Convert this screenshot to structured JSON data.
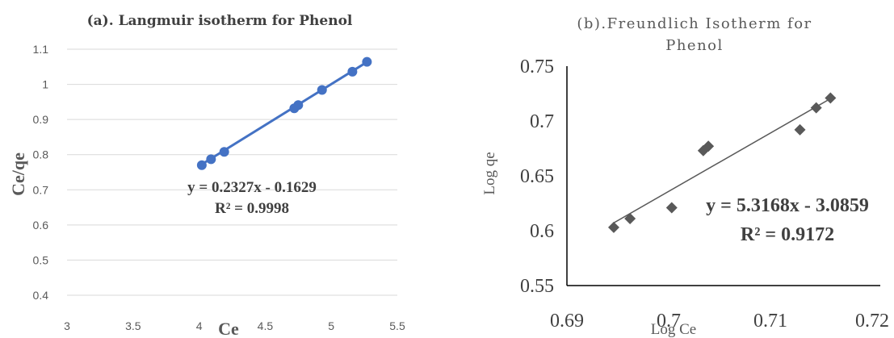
{
  "chart_data": [
    {
      "type": "scatter",
      "title": "(a). Langmuir isotherm for Phenol",
      "xlabel": "Ce",
      "ylabel": "Ce/qe",
      "xlim": [
        3,
        5.5
      ],
      "ylim": [
        0.4,
        1.1
      ],
      "xticks": [
        "3",
        "3.5",
        "4",
        "4.5",
        "5",
        "5.5"
      ],
      "yticks": [
        "0.4",
        "0.5",
        "0.6",
        "0.7",
        "0.8",
        "0.9",
        "1",
        "1.1"
      ],
      "grid": "horizontal",
      "series": [
        {
          "x": [
            4.02,
            4.09,
            4.19,
            4.72,
            4.75,
            4.93,
            5.16,
            5.27
          ],
          "y": [
            0.77,
            0.787,
            0.808,
            0.932,
            0.941,
            0.984,
            1.036,
            1.064
          ],
          "color": "#4472c4",
          "marker": "circle",
          "trendline": {
            "slope": 0.2327,
            "intercept": -0.1629,
            "x_range": [
              4.02,
              5.27
            ]
          }
        }
      ],
      "annotations": [
        "y = 0.2327x - 0.1629",
        "R² = 0.9998"
      ]
    },
    {
      "type": "scatter",
      "title": "(b).Freundlich Isotherm for Phenol",
      "title_lines": [
        "(b).Freundlich Isotherm for",
        "Phenol"
      ],
      "xlabel": "Log Ce",
      "ylabel": "Log qe",
      "xlim": [
        0.69,
        0.72
      ],
      "ylim": [
        0.55,
        0.75
      ],
      "xticks": [
        "0.69",
        "0.7",
        "0.71",
        "0.72"
      ],
      "yticks": [
        "0.55",
        "0.6",
        "0.65",
        "0.7",
        "0.75"
      ],
      "grid": "none",
      "series": [
        {
          "x": [
            0.6946,
            0.6962,
            0.7003,
            0.7034,
            0.7039,
            0.7129,
            0.7145,
            0.7159
          ],
          "y": [
            0.603,
            0.611,
            0.621,
            0.673,
            0.677,
            0.692,
            0.712,
            0.721
          ],
          "color": "#595959",
          "marker": "diamond",
          "trendline": {
            "slope": 5.3168,
            "intercept": -3.0859,
            "x_range": [
              0.6946,
              0.7159
            ]
          }
        }
      ],
      "annotations": [
        "y = 5.3168x - 3.0859",
        "R² = 0.9172"
      ]
    }
  ]
}
